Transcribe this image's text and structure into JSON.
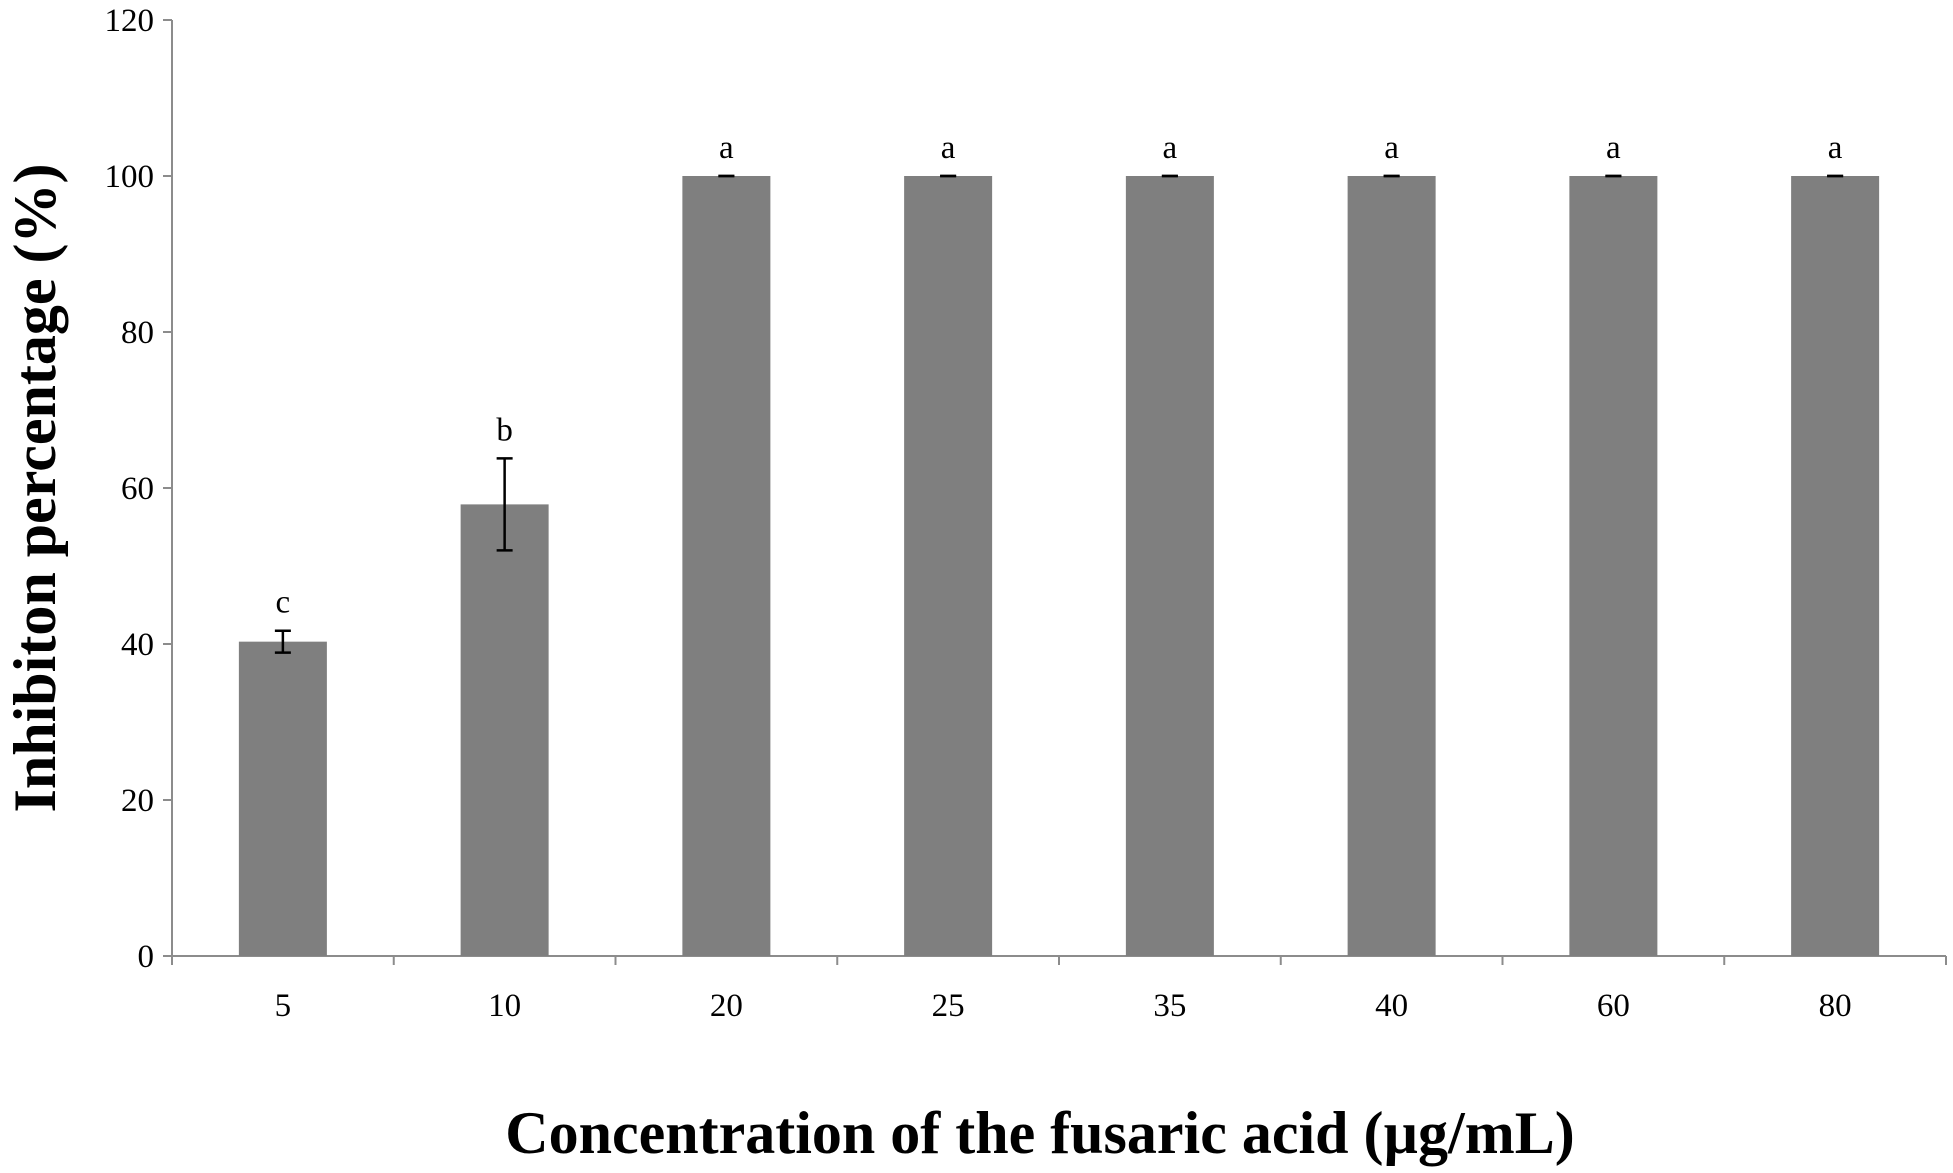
{
  "chart_data": {
    "type": "bar",
    "title": "",
    "xlabel": "Concentration of the fusaric acid (µg/mL)",
    "ylabel": "Inhibiton percentage (%)",
    "categories": [
      "5",
      "10",
      "20",
      "25",
      "35",
      "40",
      "60",
      "80"
    ],
    "values": [
      40.3,
      57.9,
      100,
      100,
      100,
      100,
      100,
      100
    ],
    "errors": [
      1.4,
      5.9,
      0,
      0,
      0,
      0,
      0,
      0
    ],
    "significance_labels": [
      "c",
      "b",
      "a",
      "a",
      "a",
      "a",
      "a",
      "a"
    ],
    "ylim": [
      0,
      120
    ],
    "yticks": [
      "0",
      "20",
      "40",
      "60",
      "80",
      "100",
      "120"
    ],
    "grid": false,
    "legend": "none",
    "bar_color": "#7f7f7f",
    "axis_color": "#8c8c8c"
  }
}
